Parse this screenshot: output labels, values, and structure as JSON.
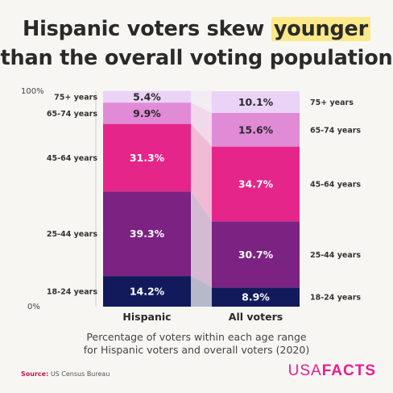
{
  "title": {
    "before": "Hispanic voters skew ",
    "highlight": "younger",
    "line2": "than the overall voting population"
  },
  "chart_data": {
    "type": "bar",
    "stacked": true,
    "categories": [
      "Hispanic",
      "All voters"
    ],
    "series": [
      {
        "name": "18-24 years",
        "values": [
          14.2,
          8.9
        ],
        "color": "#131a5c"
      },
      {
        "name": "25-44 years",
        "values": [
          39.3,
          30.7
        ],
        "color": "#7b2282"
      },
      {
        "name": "45-64 years",
        "values": [
          31.3,
          34.7
        ],
        "color": "#e5258a"
      },
      {
        "name": "65-74 years",
        "values": [
          9.9,
          15.6
        ],
        "color": "#e18bd6"
      },
      {
        "name": "75+ years",
        "values": [
          5.4,
          10.1
        ],
        "color": "#ead3f6"
      }
    ],
    "value_labels": [
      [
        "14.2%",
        "8.9%"
      ],
      [
        "39.3%",
        "30.7%"
      ],
      [
        "31.3%",
        "34.7%"
      ],
      [
        "9.9%",
        "15.6%"
      ],
      [
        "5.4%",
        "10.1%"
      ]
    ],
    "yticks": [
      "0%",
      "100%"
    ],
    "ylim": [
      0,
      100
    ],
    "label_text_color": [
      "#ffffff",
      "#ffffff",
      "#ffffff",
      "#2a2a2a",
      "#2a2a2a"
    ]
  },
  "caption": {
    "line1": "Percentage of voters within each age range",
    "line2": "for Hispanic voters and overall voters (2020)"
  },
  "source": {
    "label": "Source:",
    "text": "US Census Bureau"
  },
  "logo": {
    "part1": "USA",
    "part2": "FACTS"
  }
}
